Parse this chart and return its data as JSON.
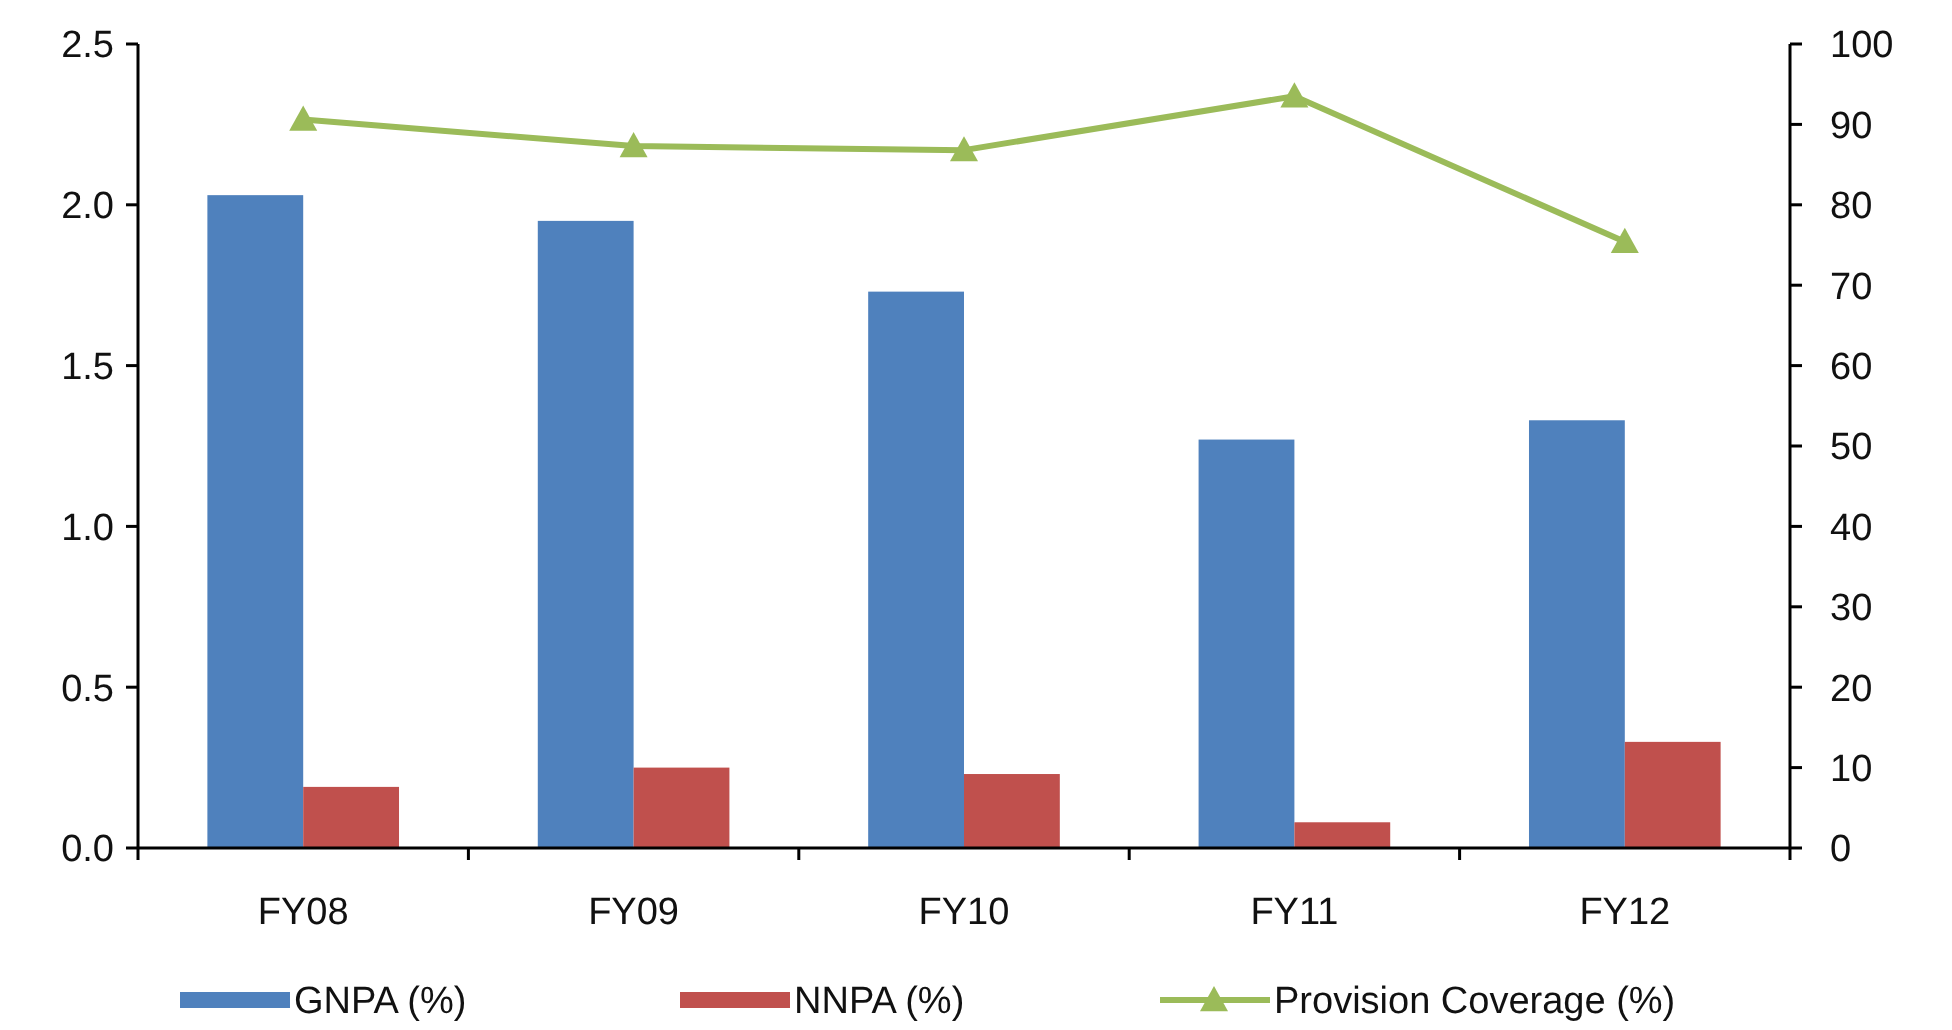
{
  "chart_data": {
    "type": "bar",
    "categories": [
      "FY08",
      "FY09",
      "FY10",
      "FY11",
      "FY12"
    ],
    "series": [
      {
        "name": "GNPA (%)",
        "color": "#4f81bd",
        "values": [
          2.03,
          1.95,
          1.73,
          1.27,
          1.33
        ]
      },
      {
        "name": "NNPA (%)",
        "color": "#c0504d",
        "values": [
          0.19,
          0.25,
          0.23,
          0.08,
          0.33
        ]
      },
      {
        "name": "Provision Coverage (%)",
        "type": "line",
        "axis": "y2",
        "color": "#9bbb59",
        "marker": "triangle",
        "values": [
          90.6,
          87.3,
          86.8,
          93.5,
          75.4
        ]
      }
    ],
    "ylim": [
      0,
      2.5
    ],
    "yticks": [
      {
        "value": 0,
        "label": "0.0"
      },
      {
        "value": 0.5,
        "label": "0.5"
      },
      {
        "value": 1,
        "label": "1.0"
      },
      {
        "value": 1.5,
        "label": "1.5"
      },
      {
        "value": 2,
        "label": "2.0"
      },
      {
        "value": 2.5,
        "label": "2.5"
      }
    ],
    "y2lim": [
      0,
      100
    ],
    "y2ticks": [
      0,
      10,
      20,
      30,
      40,
      50,
      60,
      70,
      80,
      90,
      100
    ],
    "grid": false,
    "legend": "bottom"
  }
}
